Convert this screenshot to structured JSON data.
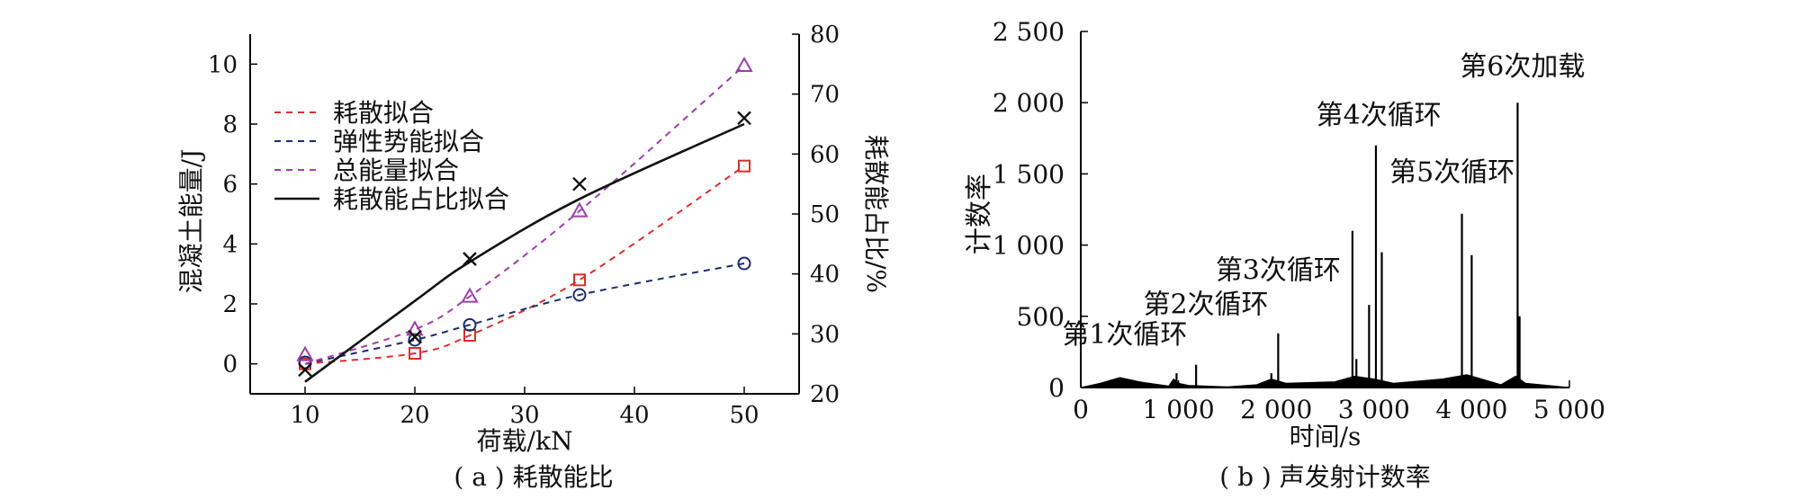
{
  "chart_data": [
    {
      "type": "scatter",
      "caption": "( a ) 耗散能比",
      "xlabel": "荷载/kN",
      "ylabel": "混凝土能量/J",
      "y2label": "耗散能占比/%",
      "xlim": [
        5,
        55
      ],
      "ylim": [
        -1,
        11
      ],
      "y2lim": [
        20,
        80
      ],
      "xticks": [
        10,
        20,
        30,
        40,
        50
      ],
      "yticks": [
        0,
        2,
        4,
        6,
        8,
        10
      ],
      "y2ticks": [
        20,
        30,
        40,
        50,
        60,
        70,
        80
      ],
      "legend_position": "top-left",
      "x": [
        10,
        20,
        25,
        35,
        50
      ],
      "series": [
        {
          "name": "耗散拟合",
          "marker": "square",
          "color": "#d62f2f",
          "axis": "left",
          "values": [
            0.0,
            0.35,
            0.95,
            2.8,
            6.6
          ],
          "fit": [
            0.0,
            0.35,
            0.95,
            2.8,
            6.6
          ]
        },
        {
          "name": "弹性势能拟合",
          "marker": "circle",
          "color": "#1d2b6b",
          "axis": "left",
          "values": [
            0.05,
            0.8,
            1.3,
            2.3,
            3.35
          ],
          "fit": [
            0.0,
            0.8,
            1.3,
            2.3,
            3.35
          ]
        },
        {
          "name": "总能量拟合",
          "marker": "triangle",
          "color": "#9b3fa8",
          "axis": "left",
          "values": [
            0.3,
            1.15,
            2.25,
            5.1,
            9.95
          ],
          "fit": [
            0.0,
            1.15,
            2.25,
            5.1,
            9.95
          ]
        },
        {
          "name": "耗散能占比拟合",
          "marker": "x",
          "color": "#111111",
          "axis": "right",
          "values": [
            24,
            29.5,
            42.5,
            55,
            66
          ],
          "fit": [
            22,
            35.5,
            42,
            52.5,
            65
          ]
        }
      ]
    },
    {
      "type": "line",
      "caption": "( b ) 声发射计数率",
      "xlabel": "时间/s",
      "ylabel": "计数率",
      "xlim": [
        0,
        5000
      ],
      "ylim": [
        0,
        2500
      ],
      "xticks": [
        0,
        1000,
        2000,
        3000,
        4000,
        5000
      ],
      "xtick_labels": [
        "0",
        "1 000",
        "2 000",
        "3 000",
        "4 000",
        "5 000"
      ],
      "yticks": [
        0,
        500,
        1000,
        1500,
        2000,
        2500
      ],
      "ytick_labels": [
        "0",
        "500",
        "1 000",
        "1 500",
        "2 000",
        "2 500"
      ],
      "color": "#000000",
      "spikes": [
        {
          "x": 980,
          "y": 100
        },
        {
          "x": 1180,
          "y": 160
        },
        {
          "x": 1950,
          "y": 100
        },
        {
          "x": 2020,
          "y": 380
        },
        {
          "x": 2780,
          "y": 1100
        },
        {
          "x": 2820,
          "y": 200
        },
        {
          "x": 2950,
          "y": 580
        },
        {
          "x": 3020,
          "y": 1700
        },
        {
          "x": 3080,
          "y": 950
        },
        {
          "x": 3900,
          "y": 1220
        },
        {
          "x": 4000,
          "y": 930
        },
        {
          "x": 4470,
          "y": 2000
        },
        {
          "x": 4490,
          "y": 500
        }
      ],
      "annotations": [
        {
          "text": "第1次循环",
          "x": 450,
          "y": 310
        },
        {
          "text": "第2次循环",
          "x": 1280,
          "y": 520
        },
        {
          "text": "第3次循环",
          "x": 2020,
          "y": 760
        },
        {
          "text": "第4次循环",
          "x": 3050,
          "y": 1850
        },
        {
          "text": "第5次循环",
          "x": 3800,
          "y": 1450
        },
        {
          "text": "第6次加载",
          "x": 4520,
          "y": 2190
        }
      ]
    }
  ]
}
